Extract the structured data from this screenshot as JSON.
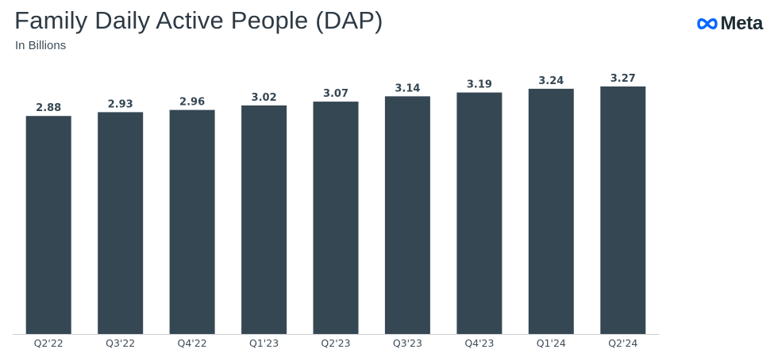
{
  "header": {
    "title": "Family Daily Active People (DAP)",
    "subtitle": "In Billions"
  },
  "brand": {
    "logo_text": "Meta",
    "logo_icon": "meta-infinity-icon",
    "logo_color": "#0866ff"
  },
  "colors": {
    "bar": "#354753",
    "text": "#2e3a44"
  },
  "chart_data": {
    "type": "bar",
    "title": "Family Daily Active People (DAP)",
    "subtitle": "In Billions",
    "categories": [
      "Q2'22",
      "Q3'22",
      "Q4'22",
      "Q1'23",
      "Q2'23",
      "Q3'23",
      "Q4'23",
      "Q1'24",
      "Q2'24"
    ],
    "values": [
      2.88,
      2.93,
      2.96,
      3.02,
      3.07,
      3.14,
      3.19,
      3.24,
      3.27
    ],
    "value_labels": [
      "2.88",
      "2.93",
      "2.96",
      "3.02",
      "3.07",
      "3.14",
      "3.19",
      "3.24",
      "3.27"
    ],
    "xlabel": "",
    "ylabel": "",
    "ylim": [
      0,
      3.27
    ],
    "grid": false,
    "legend": "none",
    "data_labels": "above-bars"
  }
}
